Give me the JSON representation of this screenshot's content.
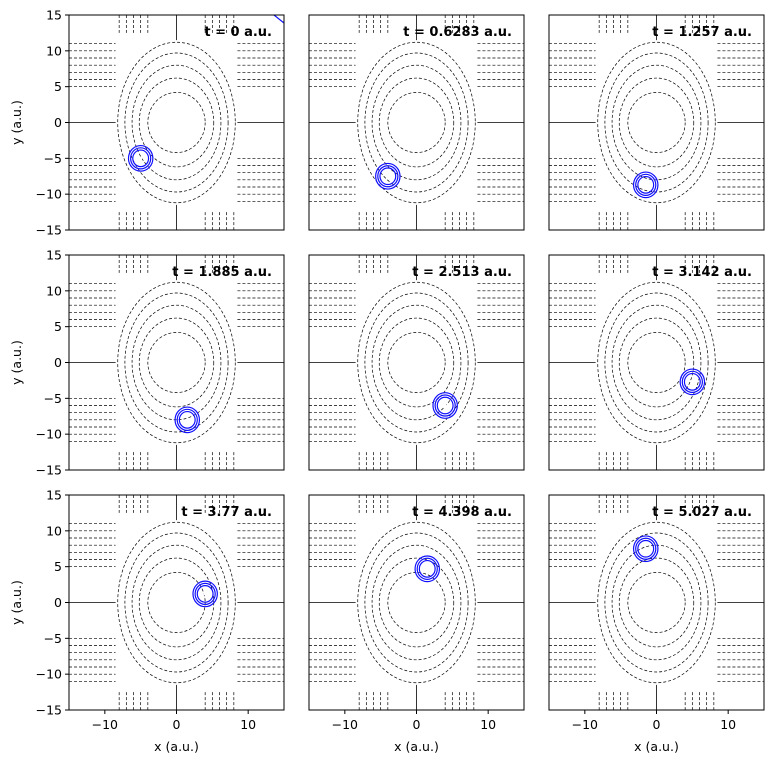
{
  "chart_data": {
    "type": "contour",
    "layout": {
      "rows": 3,
      "cols": 3
    },
    "x_axis": {
      "label": "x (a.u.)",
      "range": [
        -15,
        15
      ],
      "ticks": [
        -10,
        0,
        10
      ]
    },
    "y_axis": {
      "label": "y (a.u.)",
      "range": [
        -15,
        15
      ],
      "ticks": [
        15,
        10,
        5,
        0,
        -5,
        -10,
        -15
      ]
    },
    "potential_contours": {
      "center": [
        0,
        0
      ],
      "semi_axis_x": [
        4.0,
        5.2,
        6.2,
        7.2,
        8.2
      ],
      "semi_axis_y": [
        4.2,
        6.2,
        8.0,
        9.7,
        11.2
      ]
    },
    "colors": {
      "wavepacket": "#1010ff",
      "contour": "#000000"
    },
    "panels": [
      {
        "time_label": "t = 0 a.u.",
        "packet_center": [
          -5.0,
          -5.0
        ]
      },
      {
        "time_label": "t = 0.6283 a.u.",
        "packet_center": [
          -4.0,
          -7.5
        ]
      },
      {
        "time_label": "t = 1.257 a.u.",
        "packet_center": [
          -1.5,
          -8.7
        ]
      },
      {
        "time_label": "t = 1.885 a.u.",
        "packet_center": [
          1.5,
          -8.0
        ]
      },
      {
        "time_label": "t = 2.513 a.u.",
        "packet_center": [
          4.0,
          -6.0
        ]
      },
      {
        "time_label": "t = 3.142 a.u.",
        "packet_center": [
          5.0,
          -2.7
        ]
      },
      {
        "time_label": "t = 3.77 a.u.",
        "packet_center": [
          4.0,
          1.2
        ]
      },
      {
        "time_label": "t = 4.398 a.u.",
        "packet_center": [
          1.5,
          4.7
        ]
      },
      {
        "time_label": "t = 5.027 a.u.",
        "packet_center": [
          -1.5,
          7.5
        ]
      }
    ]
  }
}
